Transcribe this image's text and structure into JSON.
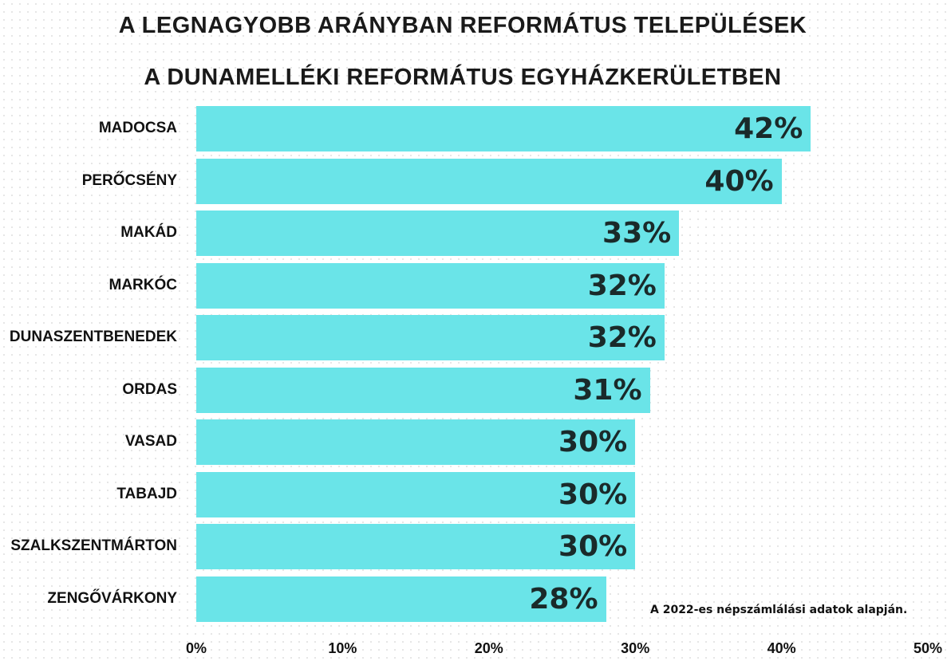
{
  "chart_data": {
    "type": "bar",
    "orientation": "horizontal",
    "title": [
      "A legnagyobb arányban református települések",
      "a Dunamelléki Református Egyházkerületben"
    ],
    "categories": [
      "Madocsa",
      "Perőcsény",
      "Makád",
      "Markóc",
      "Dunaszentbenedek",
      "Ordas",
      "Vasad",
      "Tabajd",
      "Szalkszentmárton",
      "Zengővárkony"
    ],
    "values": [
      42,
      40,
      33,
      32,
      32,
      31,
      30,
      30,
      30,
      28
    ],
    "value_labels": [
      "42%",
      "40%",
      "33%",
      "32%",
      "32%",
      "31%",
      "30%",
      "30%",
      "30%",
      "28%"
    ],
    "xlim": [
      0,
      50
    ],
    "x_ticks": [
      "0%",
      "10%",
      "20%",
      "30%",
      "40%",
      "50%"
    ],
    "xlabel": "",
    "ylabel": "",
    "grid": false,
    "bar_color": "#6ae4e8",
    "annotation": "A 2022-es népszámlálási adatok alapján."
  }
}
